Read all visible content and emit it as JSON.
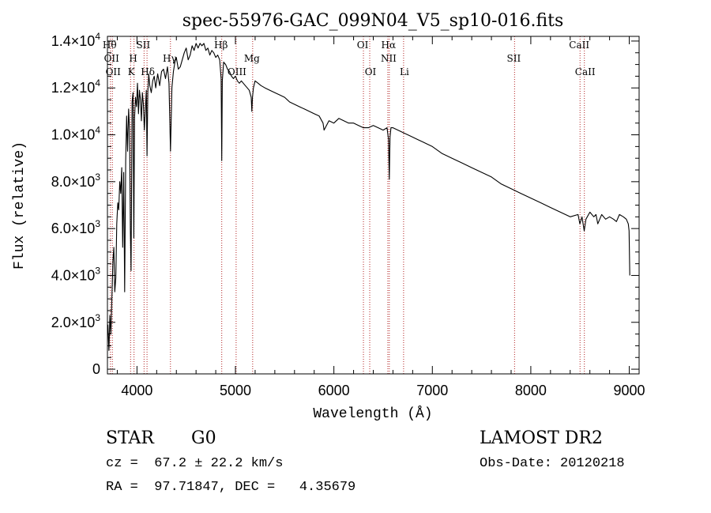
{
  "chart_data": {
    "type": "line",
    "title": "spec-55976-GAC_099N04_V5_sp10-016.fits",
    "xlabel": "Wavelength (Å)",
    "ylabel": "Flux (relative)",
    "xlim": [
      3700,
      9100
    ],
    "ylim": [
      -200,
      14200
    ],
    "x_ticks": [
      {
        "value": 4000,
        "label": "4000"
      },
      {
        "value": 5000,
        "label": "5000"
      },
      {
        "value": 6000,
        "label": "6000"
      },
      {
        "value": 7000,
        "label": "7000"
      },
      {
        "value": 8000,
        "label": "8000"
      },
      {
        "value": 9000,
        "label": "9000"
      }
    ],
    "y_ticks": [
      {
        "value": 0,
        "mant": "0",
        "exp": ""
      },
      {
        "value": 2000,
        "mant": "2.0×10",
        "exp": "3"
      },
      {
        "value": 4000,
        "mant": "4.0×10",
        "exp": "3"
      },
      {
        "value": 6000,
        "mant": "6.0×10",
        "exp": "3"
      },
      {
        "value": 8000,
        "mant": "8.0×10",
        "exp": "3"
      },
      {
        "value": 10000,
        "mant": "1.0×10",
        "exp": "4"
      },
      {
        "value": 12000,
        "mant": "1.2×10",
        "exp": "4"
      },
      {
        "value": 14000,
        "mant": "1.4×10",
        "exp": "4"
      }
    ],
    "grid": false,
    "series": [
      {
        "color": "#000000",
        "x": [
          3705,
          3715,
          3725,
          3735,
          3745,
          3755,
          3765,
          3775,
          3785,
          3795,
          3805,
          3815,
          3825,
          3835,
          3845,
          3855,
          3865,
          3875,
          3885,
          3895,
          3905,
          3915,
          3925,
          3933,
          3940,
          3950,
          3960,
          3968,
          3975,
          3985,
          3995,
          4005,
          4015,
          4025,
          4035,
          4045,
          4055,
          4065,
          4075,
          4085,
          4095,
          4102,
          4110,
          4120,
          4130,
          4145,
          4160,
          4175,
          4190,
          4210,
          4230,
          4250,
          4270,
          4290,
          4310,
          4325,
          4340,
          4355,
          4370,
          4385,
          4400,
          4420,
          4440,
          4460,
          4480,
          4500,
          4520,
          4540,
          4560,
          4580,
          4600,
          4620,
          4640,
          4660,
          4680,
          4700,
          4720,
          4740,
          4760,
          4780,
          4800,
          4820,
          4840,
          4855,
          4861,
          4867,
          4880,
          4900,
          4920,
          4940,
          4960,
          4980,
          5000,
          5020,
          5040,
          5060,
          5080,
          5100,
          5120,
          5140,
          5160,
          5167,
          5173,
          5183,
          5200,
          5230,
          5260,
          5300,
          5350,
          5400,
          5450,
          5500,
          5550,
          5600,
          5650,
          5700,
          5750,
          5800,
          5850,
          5890,
          5900,
          5950,
          6000,
          6050,
          6100,
          6150,
          6200,
          6250,
          6300,
          6350,
          6400,
          6450,
          6500,
          6540,
          6555,
          6563,
          6570,
          6580,
          6600,
          6650,
          6700,
          6750,
          6800,
          6850,
          6900,
          6950,
          7000,
          7100,
          7200,
          7300,
          7400,
          7500,
          7600,
          7700,
          7800,
          7900,
          8000,
          8100,
          8200,
          8300,
          8400,
          8480,
          8498,
          8520,
          8542,
          8560,
          8600,
          8640,
          8662,
          8680,
          8720,
          8760,
          8800,
          8840,
          8870,
          8900,
          8940,
          8970,
          8990,
          8998,
          9005
        ],
        "y": [
          1900,
          800,
          2300,
          1500,
          3000,
          4600,
          5200,
          3300,
          3900,
          6200,
          7100,
          6800,
          8000,
          7500,
          8600,
          5200,
          8400,
          3300,
          8900,
          10800,
          9300,
          11100,
          10200,
          6000,
          4200,
          11400,
          11800,
          5600,
          10700,
          11600,
          11200,
          12200,
          10900,
          11900,
          11500,
          10600,
          11800,
          11300,
          10200,
          11100,
          11900,
          9100,
          11800,
          12600,
          12100,
          11800,
          12300,
          12500,
          12000,
          12600,
          12100,
          12700,
          12800,
          12400,
          12900,
          12200,
          9300,
          12000,
          12700,
          13100,
          13300,
          12800,
          12900,
          13200,
          13500,
          13700,
          13200,
          13400,
          13800,
          13600,
          13900,
          13700,
          13900,
          13800,
          13900,
          13600,
          13700,
          13400,
          13600,
          13500,
          13300,
          13400,
          13200,
          12400,
          8900,
          12300,
          13100,
          13000,
          12800,
          12700,
          12500,
          12400,
          12500,
          12300,
          12200,
          12300,
          12200,
          12100,
          12000,
          11900,
          11600,
          11000,
          11600,
          12000,
          12300,
          12200,
          12100,
          12000,
          11900,
          11800,
          11700,
          11600,
          11400,
          11300,
          11200,
          11100,
          11000,
          10900,
          10800,
          10500,
          10200,
          10600,
          10500,
          10700,
          10600,
          10500,
          10500,
          10400,
          10300,
          10300,
          10400,
          10300,
          10200,
          10300,
          9800,
          8100,
          9900,
          10300,
          10300,
          10200,
          10100,
          10000,
          9900,
          9800,
          9700,
          9600,
          9500,
          9200,
          9000,
          8800,
          8600,
          8400,
          8200,
          7900,
          7700,
          7500,
          7300,
          7100,
          6900,
          6700,
          6500,
          6600,
          6200,
          6500,
          5900,
          6400,
          6700,
          6500,
          6600,
          6200,
          6600,
          6400,
          6500,
          6400,
          6300,
          6600,
          6500,
          6400,
          6200,
          5900,
          4000
        ]
      }
    ],
    "lines": [
      {
        "x": 3730,
        "upper": "Hθ",
        "lower": ""
      },
      {
        "x": 3750,
        "upper": "OII",
        "lower": "OII"
      },
      {
        "x": 3935,
        "upper": "",
        "lower": "K"
      },
      {
        "x": 3970,
        "upper": "H",
        "lower": ""
      },
      {
        "x": 4072,
        "upper": "SII",
        "lower": ""
      },
      {
        "x": 4102,
        "upper": "",
        "lower": "Hδ"
      },
      {
        "x": 4340,
        "upper": "Hγ",
        "lower": ""
      },
      {
        "x": 4861,
        "upper": "Hβ",
        "lower": ""
      },
      {
        "x": 5007,
        "upper": "",
        "lower": "OIII"
      },
      {
        "x": 5175,
        "upper": "Mg",
        "lower": ""
      },
      {
        "x": 6300,
        "upper": "OI",
        "lower": ""
      },
      {
        "x": 6364,
        "upper": "",
        "lower": "OI"
      },
      {
        "x": 6548,
        "upper": "",
        "lower": "NII"
      },
      {
        "x": 6563,
        "upper": "Hα",
        "lower": ""
      },
      {
        "x": 6708,
        "upper": "",
        "lower": "Li"
      },
      {
        "x": 7835,
        "upper": "SII",
        "lower": ""
      },
      {
        "x": 8500,
        "upper": "CaII",
        "lower": ""
      },
      {
        "x": 8544,
        "upper": "",
        "lower": "CaII"
      }
    ]
  },
  "info": {
    "obj_class": "STAR",
    "subclass": "G0",
    "redshift": "cz =  67.2 ± 22.2 km/s",
    "coords": "RA =  97.71847, DEC =   4.35679",
    "survey": "LAMOST DR2",
    "obs_date": "Obs-Date: 20120218"
  }
}
